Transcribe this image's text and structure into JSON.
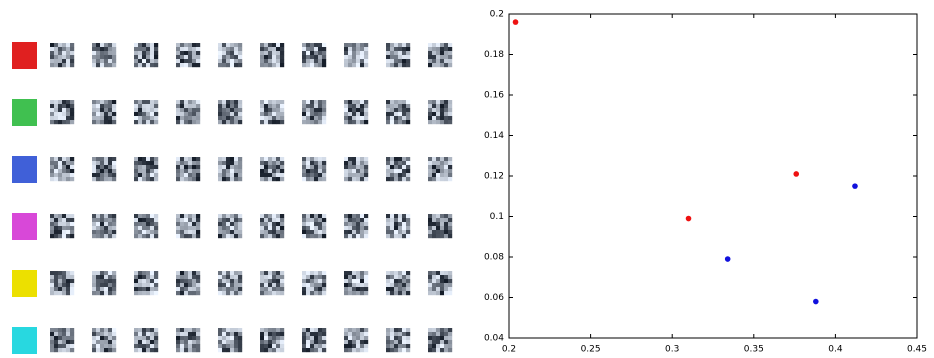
{
  "chart_data": {
    "type": "scatter",
    "series": [
      {
        "color": "#ee1111",
        "x": [
          0.204,
          0.31,
          0.376
        ],
        "values": [
          0.196,
          0.099,
          0.121
        ]
      },
      {
        "color": "#1111dd",
        "x": [
          0.334,
          0.388,
          0.412
        ],
        "values": [
          0.079,
          0.058,
          0.115
        ]
      }
    ],
    "xlim": [
      0.2,
      0.45
    ],
    "xticks": [
      0.2,
      0.25,
      0.3,
      0.35,
      0.4,
      0.45
    ],
    "ylim": [
      0.04,
      0.2
    ],
    "yticks": [
      0.04,
      0.06,
      0.08,
      0.1,
      0.12,
      0.14,
      0.16,
      0.18,
      0.2
    ]
  }
}
